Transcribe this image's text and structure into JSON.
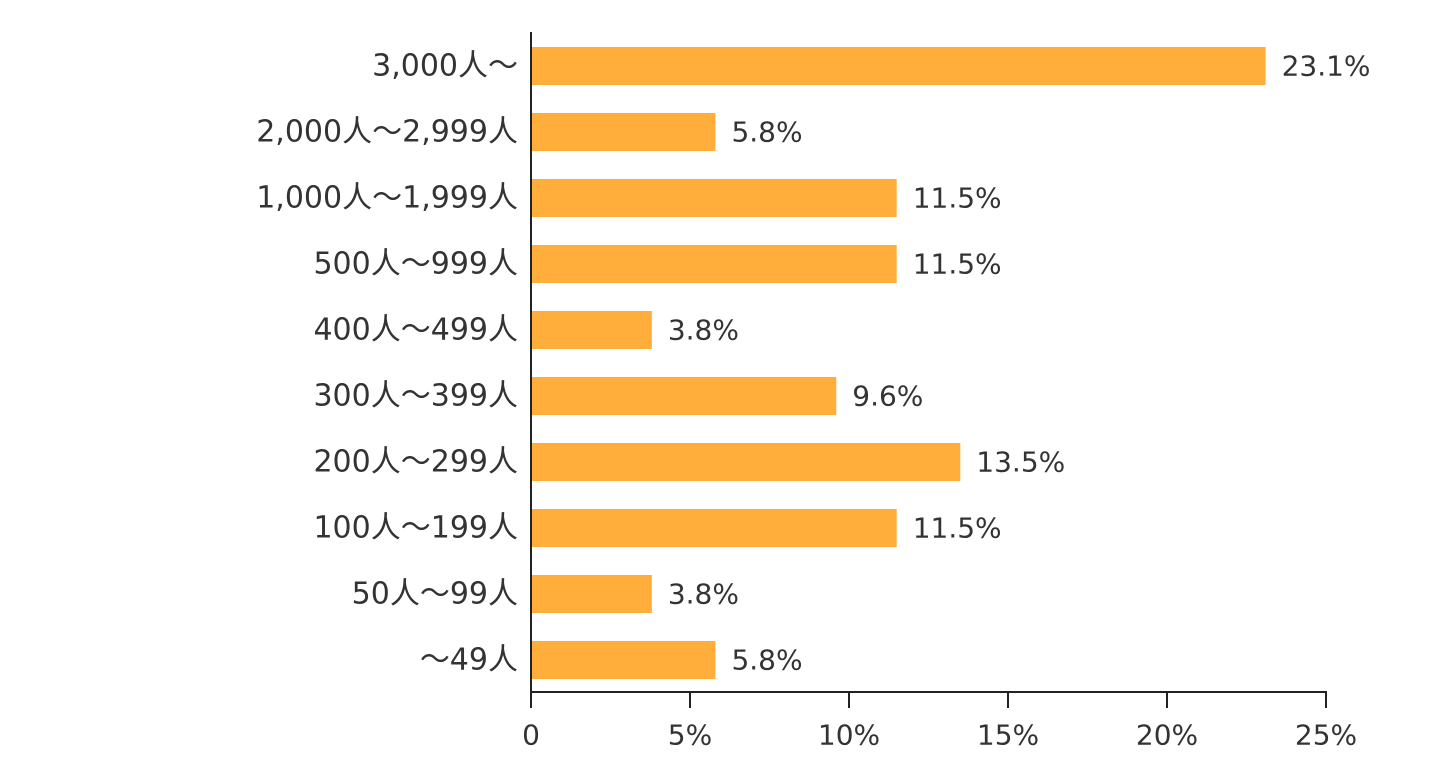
{
  "chart_data": {
    "type": "bar",
    "orientation": "horizontal",
    "categories": [
      "3,000人～",
      "2,000人～2,999人",
      "1,000人～1,999人",
      "500人～999人",
      "400人～499人",
      "300人～399人",
      "200人～299人",
      "100人～199人",
      "50人～99人",
      "～49人"
    ],
    "values": [
      23.1,
      5.8,
      11.5,
      11.5,
      3.8,
      9.6,
      13.5,
      11.5,
      3.8,
      5.8
    ],
    "value_labels": [
      "23.1%",
      "5.8%",
      "11.5%",
      "11.5%",
      "3.8%",
      "9.6%",
      "13.5%",
      "11.5%",
      "3.8%",
      "5.8%"
    ],
    "xlim": [
      0,
      25
    ],
    "xticks": [
      0,
      5,
      10,
      15,
      20,
      25
    ],
    "xtick_labels": [
      "0",
      "5%",
      "10%",
      "15%",
      "20%",
      "25%"
    ],
    "grid": false,
    "legend": "none",
    "bar_color": "#FFAE3B",
    "axis_color": "#222222"
  }
}
